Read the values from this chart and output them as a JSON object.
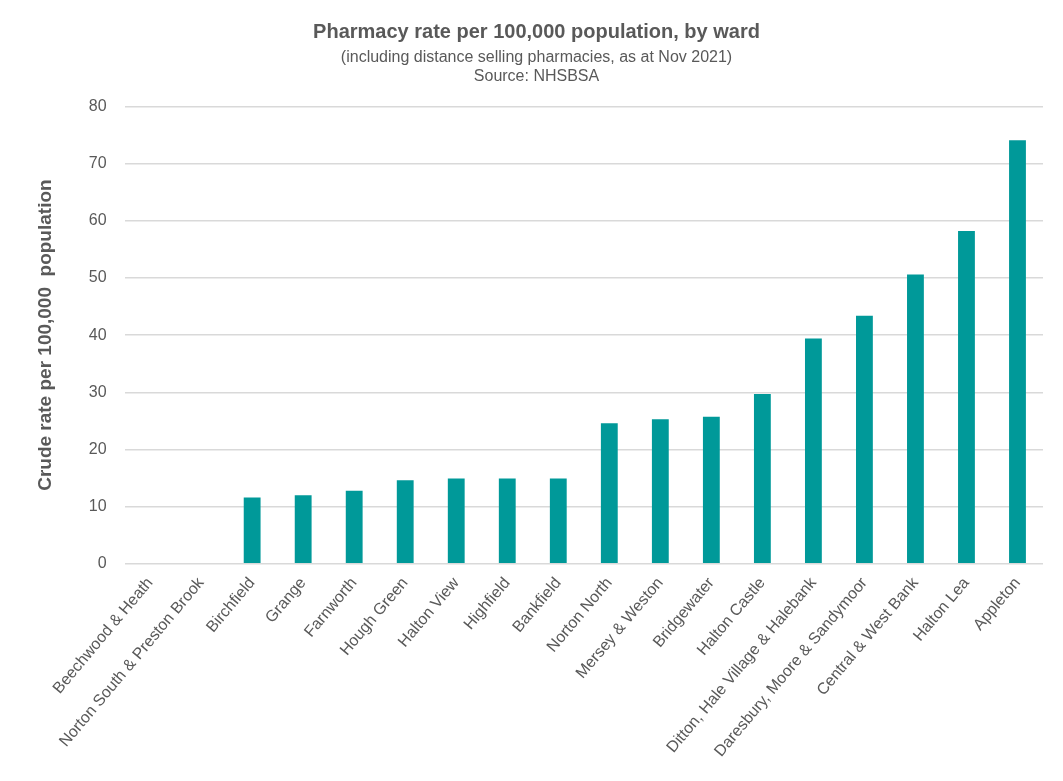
{
  "chart_data": {
    "type": "bar",
    "title": "Pharmacy rate per 100,000 population, by ward",
    "subtitle": "(including distance selling pharmacies, as at Nov 2021)",
    "annotations": [
      "Source: NHSBSA"
    ],
    "ylabel": "Crude rate per 100,000  population",
    "categories": [
      "Beechwood & Heath",
      "Norton South & Preston Brook",
      "Birchfield",
      "Grange",
      "Farnworth",
      "Hough Green",
      "Halton View",
      "Highfield",
      "Bankfield",
      "Norton North",
      "Mersey & Weston",
      "Bridgewater",
      "Halton Castle",
      "Ditton, Hale Village & Halebank",
      "Daresbury, Moore & Sandymoor",
      "Central & West Bank",
      "Halton Lea",
      "Appleton"
    ],
    "values": [
      0,
      0,
      11.6,
      12.0,
      12.8,
      14.6,
      14.9,
      14.9,
      14.9,
      24.6,
      25.3,
      25.7,
      29.7,
      39.4,
      43.4,
      50.6,
      58.2,
      74.1
    ],
    "color": "#009999",
    "ylim": [
      0,
      80
    ],
    "yticks": [
      0,
      10,
      20,
      30,
      40,
      50,
      60,
      70,
      80
    ],
    "grid": "y",
    "legend": false
  }
}
